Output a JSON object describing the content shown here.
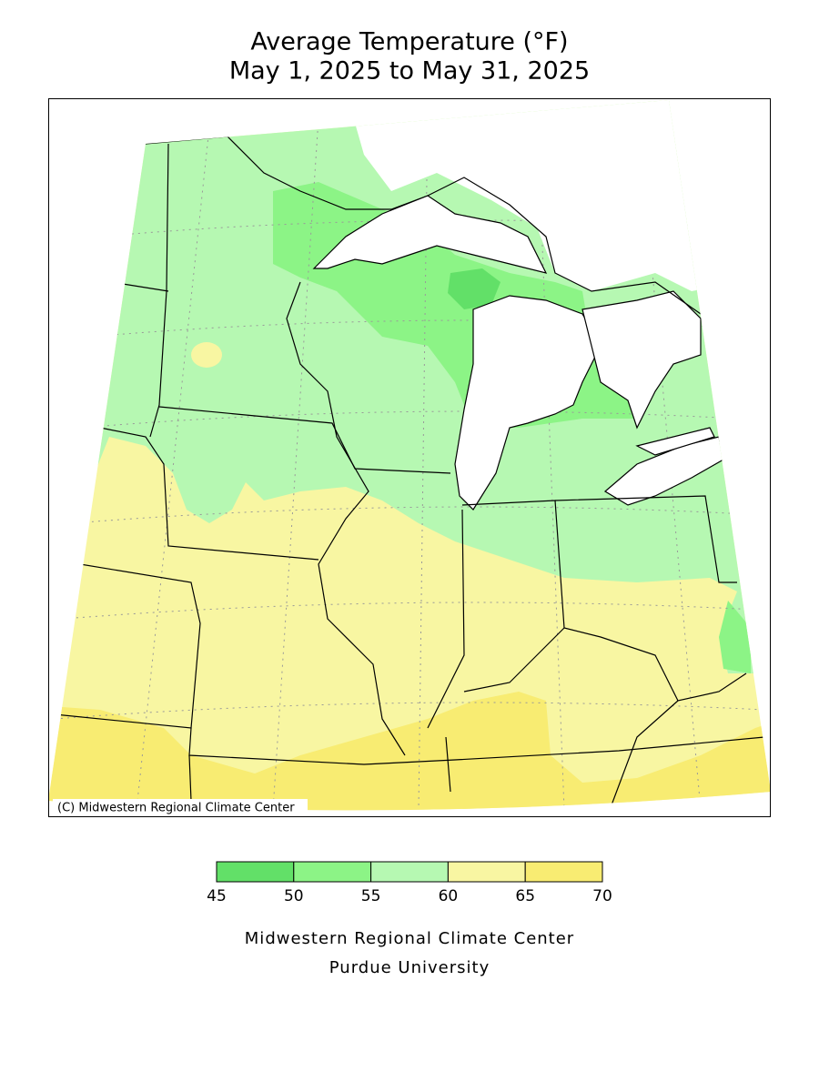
{
  "title": "Average Temperature (°F)",
  "subtitle": "May 1, 2025 to May 31, 2025",
  "map": {
    "copyright": "(C) Midwestern Regional Climate Center"
  },
  "legend": {
    "bins": [
      45,
      50,
      55,
      60,
      65,
      70
    ],
    "colors": [
      "#62e068",
      "#8cf486",
      "#b6f8b2",
      "#f8f6a2",
      "#f8ec72"
    ]
  },
  "footer": {
    "line1": "Midwestern Regional Climate Center",
    "line2": "Purdue University"
  }
}
